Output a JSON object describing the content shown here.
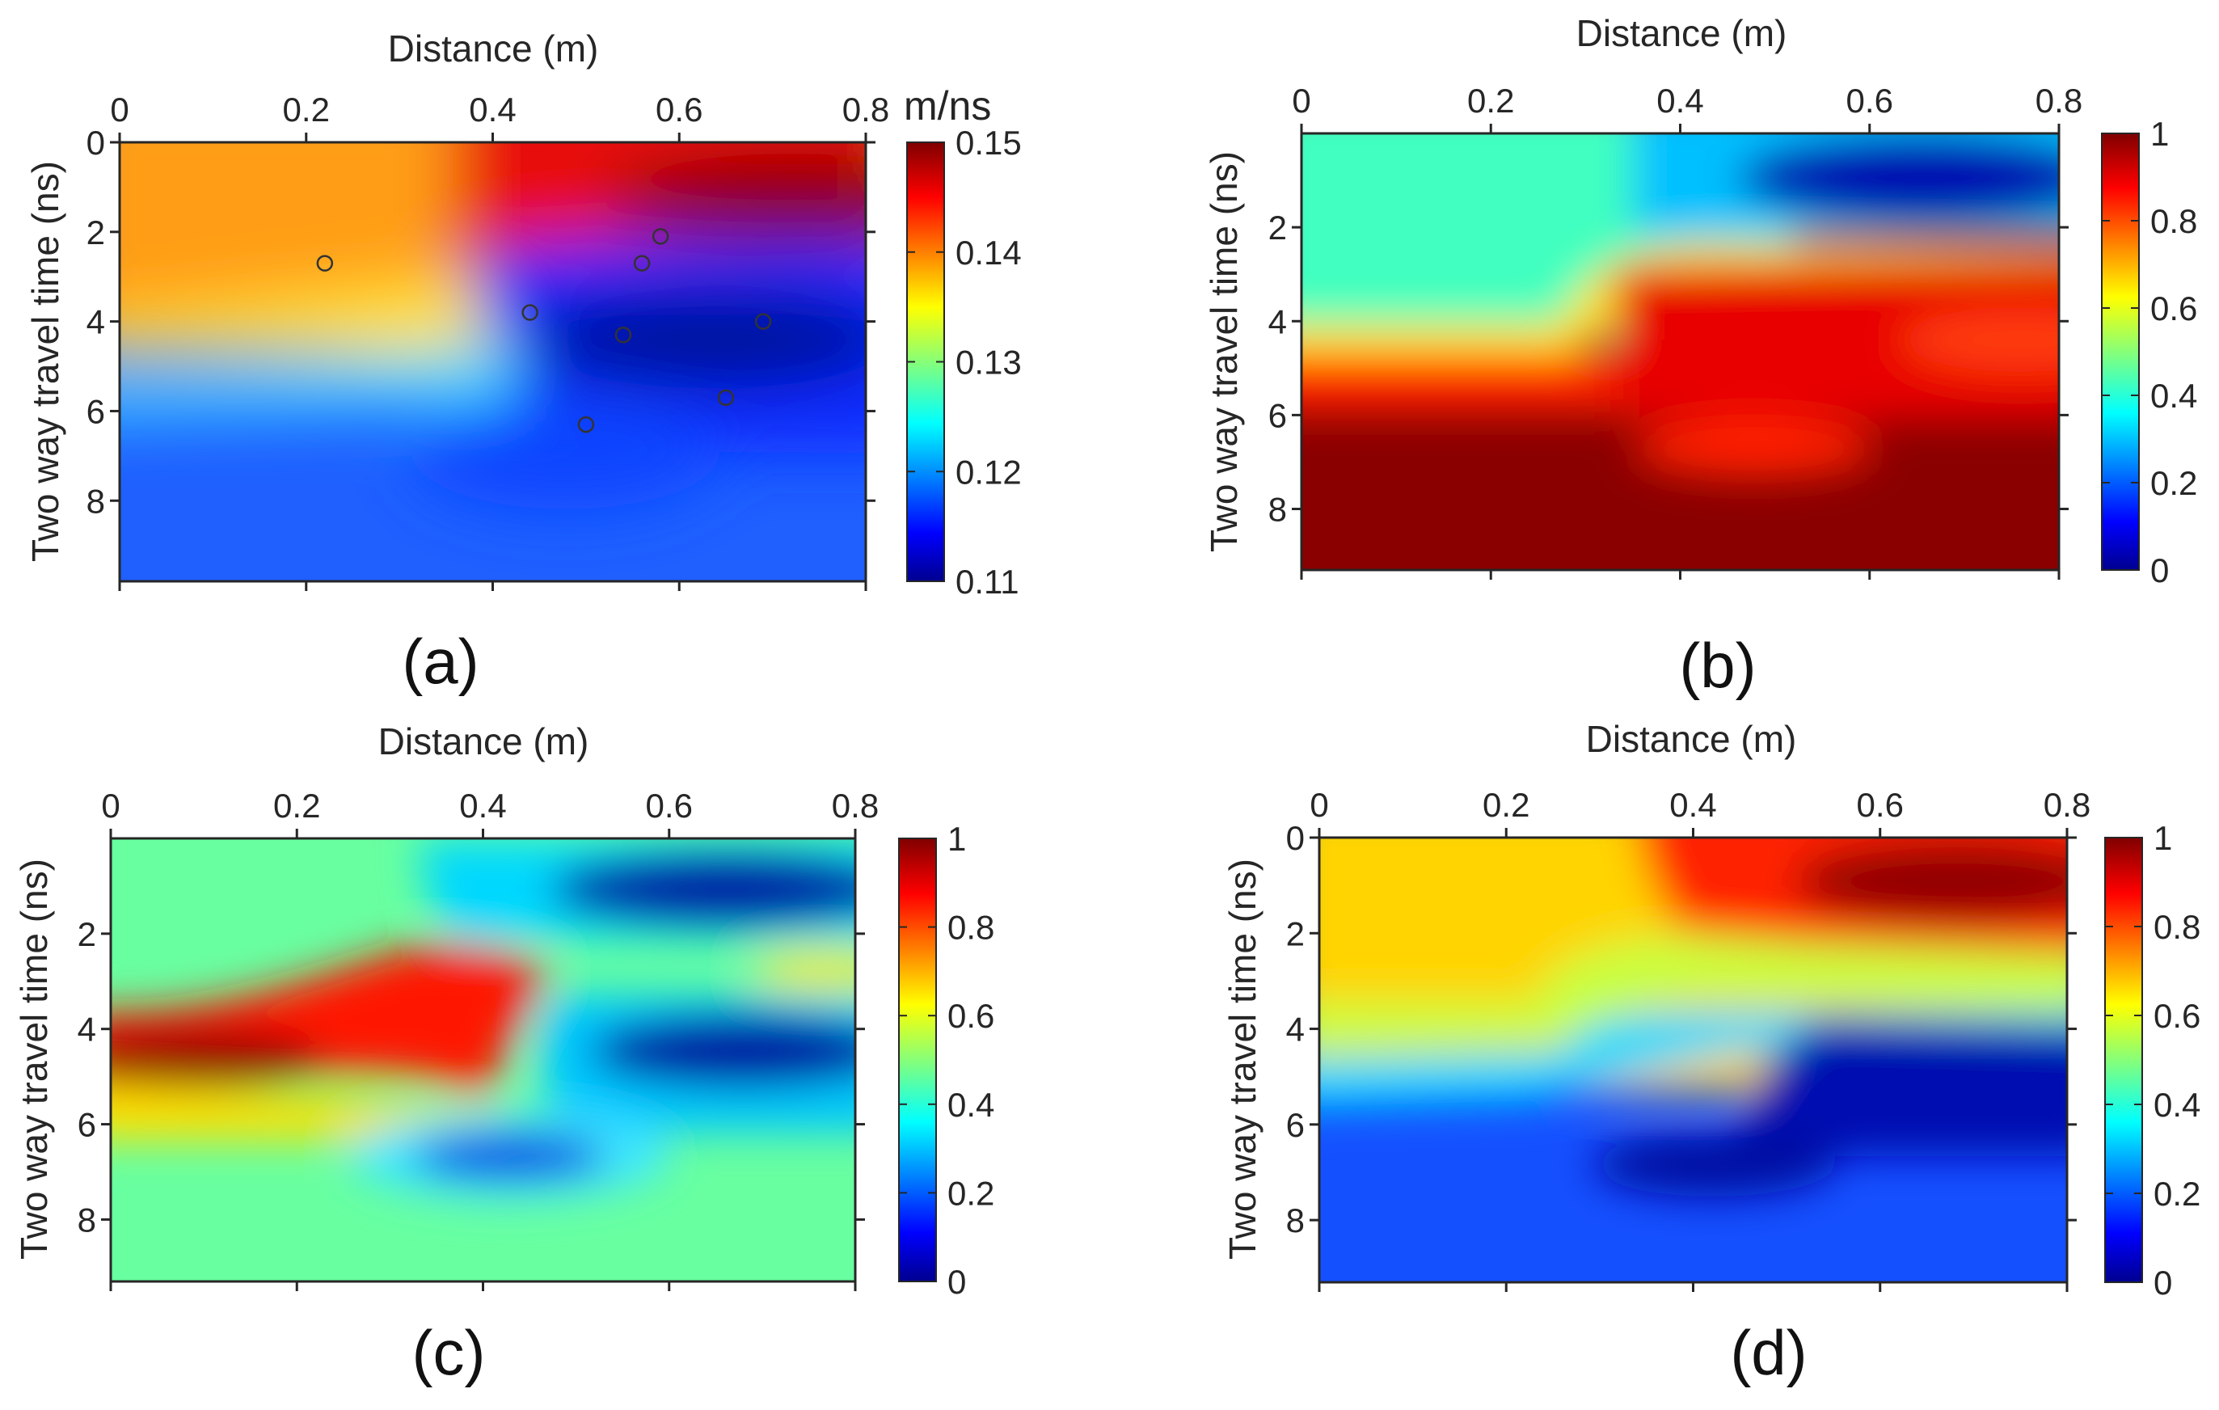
{
  "chart_data": [
    {
      "type": "heatmap",
      "panel_label": "(a)",
      "xlabel": "Distance (m)",
      "ylabel": "Two way travel time (ns)",
      "xlim": [
        0,
        0.8
      ],
      "ylim": [
        0,
        9.8
      ],
      "xticks": [
        "0",
        "0.2",
        "0.4",
        "0.6",
        "0.8"
      ],
      "yticks": [
        "0",
        "2",
        "4",
        "6",
        "8"
      ],
      "colorbar": {
        "unit": "m/ns",
        "min": 0.11,
        "max": 0.15,
        "ticks": [
          "0.11",
          "0.12",
          "0.13",
          "0.14",
          "0.15"
        ]
      },
      "colormap": "jet",
      "field_description": "velocity field: ~0.14 upper-left, 0.15 upper-right band, 0.125-0.115 lower region, low-velocity pocket near x 0.55-0.8, t 3-5 ns",
      "markers": [
        {
          "x": 0.22,
          "y": 2.7
        },
        {
          "x": 0.44,
          "y": 3.8
        },
        {
          "x": 0.56,
          "y": 2.7
        },
        {
          "x": 0.58,
          "y": 2.1
        },
        {
          "x": 0.54,
          "y": 4.3
        },
        {
          "x": 0.69,
          "y": 4.0
        },
        {
          "x": 0.5,
          "y": 6.3
        },
        {
          "x": 0.65,
          "y": 5.7
        }
      ]
    },
    {
      "type": "heatmap",
      "panel_label": "(b)",
      "xlabel": "Distance (m)",
      "ylabel": "Two way travel time (ns)",
      "xlim": [
        0,
        0.8
      ],
      "ylim": [
        0,
        9.3
      ],
      "xticks": [
        "0",
        "0.2",
        "0.4",
        "0.6",
        "0.8"
      ],
      "yticks": [
        "2",
        "4",
        "6",
        "8"
      ],
      "colorbar": {
        "unit": "",
        "min": 0,
        "max": 1,
        "ticks": [
          "0",
          "0.2",
          "0.4",
          "0.6",
          "0.8",
          "1"
        ]
      },
      "colormap": "jet"
    },
    {
      "type": "heatmap",
      "panel_label": "(c)",
      "xlabel": "Distance (m)",
      "ylabel": "Two way travel time (ns)",
      "xlim": [
        0,
        0.8
      ],
      "ylim": [
        0,
        9.3
      ],
      "xticks": [
        "0",
        "0.2",
        "0.4",
        "0.6",
        "0.8"
      ],
      "yticks": [
        "2",
        "4",
        "6",
        "8"
      ],
      "colorbar": {
        "unit": "",
        "min": 0,
        "max": 1,
        "ticks": [
          "0",
          "0.2",
          "0.4",
          "0.6",
          "0.8",
          "1"
        ]
      },
      "colormap": "jet"
    },
    {
      "type": "heatmap",
      "panel_label": "(d)",
      "xlabel": "Distance (m)",
      "ylabel": "Two way travel time (ns)",
      "xlim": [
        0,
        0.8
      ],
      "ylim": [
        0,
        9.3
      ],
      "xticks": [
        "0",
        "0.2",
        "0.4",
        "0.6",
        "0.8"
      ],
      "yticks": [
        "0",
        "2",
        "4",
        "6",
        "8"
      ],
      "colorbar": {
        "unit": "",
        "min": 0,
        "max": 1,
        "ticks": [
          "0",
          "0.2",
          "0.4",
          "0.6",
          "0.8",
          "1"
        ]
      },
      "colormap": "jet"
    }
  ]
}
